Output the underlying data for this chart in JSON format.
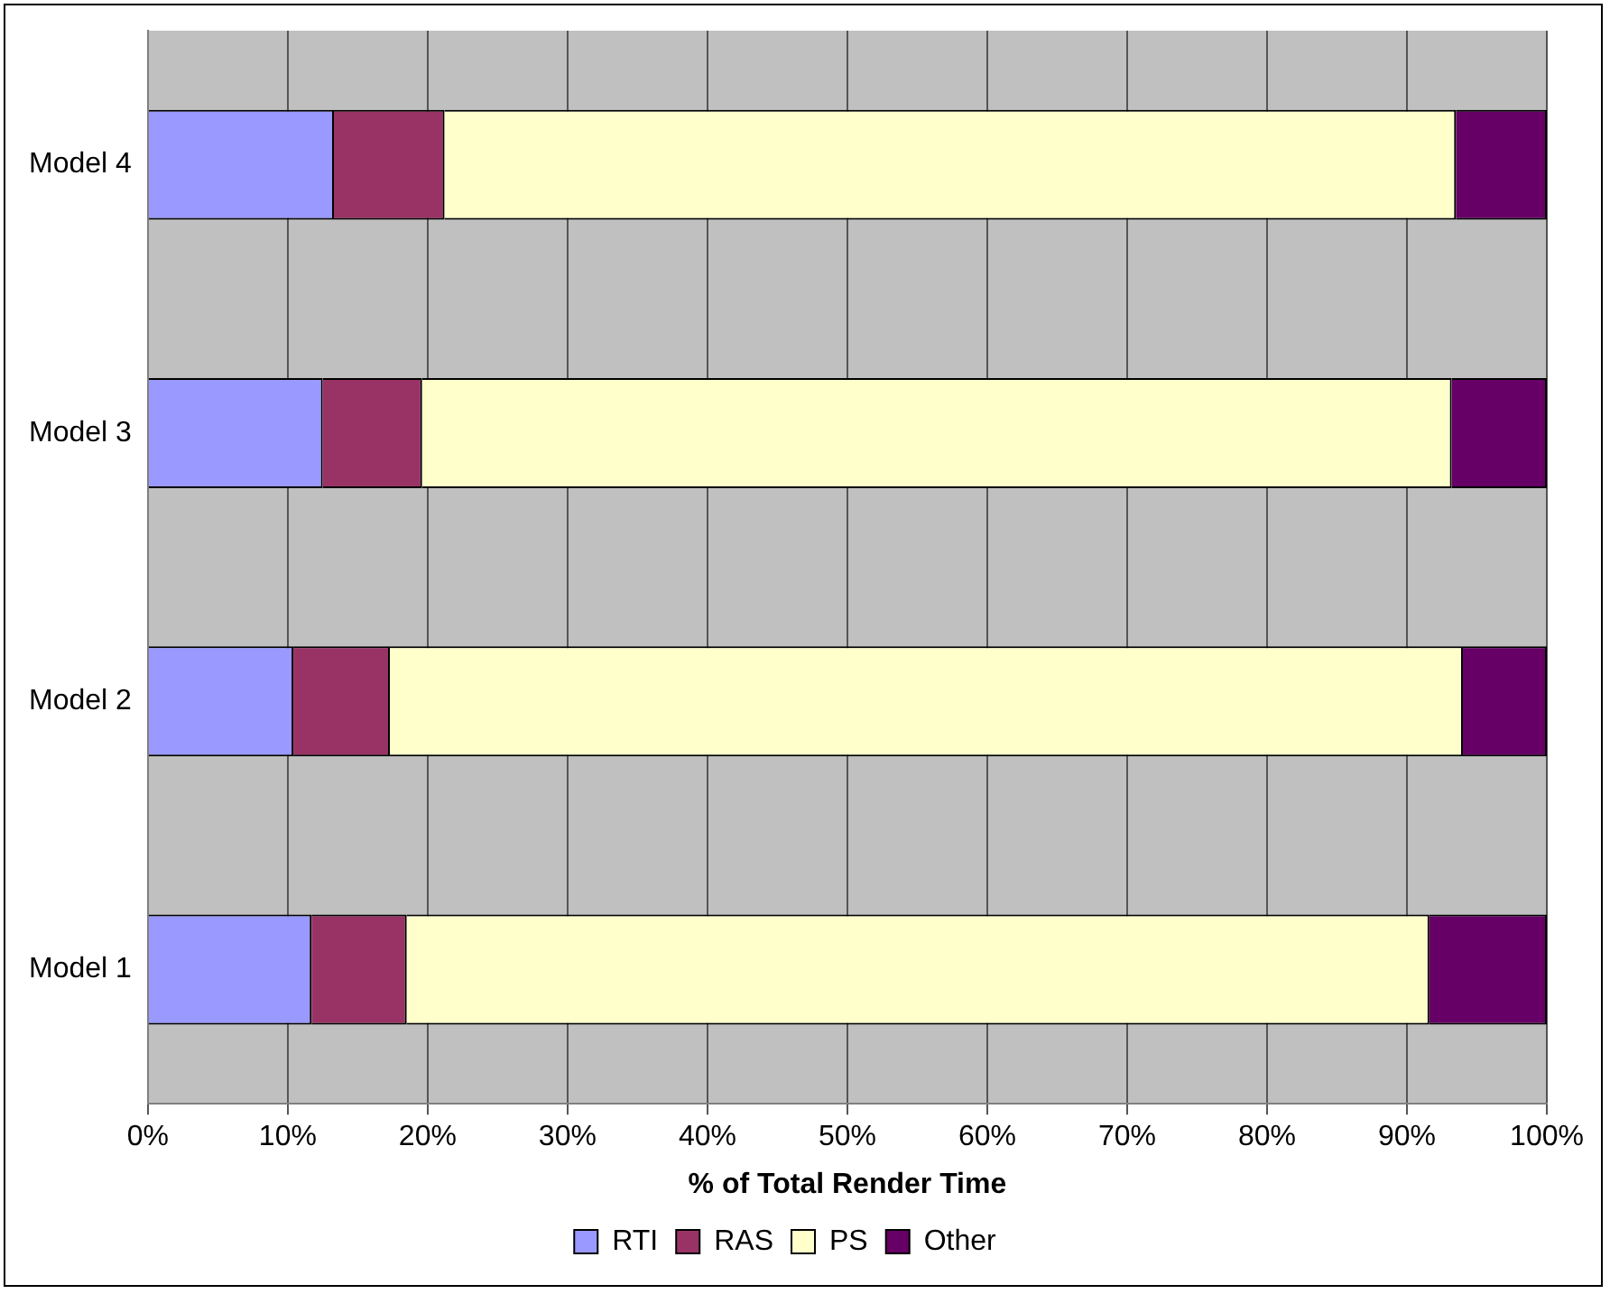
{
  "chart_data": {
    "type": "bar",
    "orientation": "horizontal",
    "stacked": true,
    "xlabel": "% of Total Render Time",
    "categories": [
      "Model 4",
      "Model 3",
      "Model 2",
      "Model 1"
    ],
    "series": [
      {
        "name": "RTI",
        "color": "#9999ff",
        "values": [
          13.3,
          12.5,
          10.4,
          11.7
        ]
      },
      {
        "name": "RAS",
        "color": "#993366",
        "values": [
          7.9,
          7.1,
          6.9,
          6.8
        ]
      },
      {
        "name": "PS",
        "color": "#ffffcc",
        "values": [
          72.3,
          73.6,
          76.7,
          73.1
        ]
      },
      {
        "name": "Other",
        "color": "#660066",
        "values": [
          6.5,
          6.8,
          6.0,
          8.4
        ]
      }
    ],
    "xlim": [
      0,
      100
    ],
    "xticks": [
      {
        "value": 0,
        "label": "0%"
      },
      {
        "value": 10,
        "label": "10%"
      },
      {
        "value": 20,
        "label": "20%"
      },
      {
        "value": 30,
        "label": "30%"
      },
      {
        "value": 40,
        "label": "40%"
      },
      {
        "value": 50,
        "label": "50%"
      },
      {
        "value": 60,
        "label": "60%"
      },
      {
        "value": 70,
        "label": "70%"
      },
      {
        "value": 80,
        "label": "80%"
      },
      {
        "value": 90,
        "label": "90%"
      },
      {
        "value": 100,
        "label": "100%"
      }
    ],
    "grid": "x",
    "legend": "bottom"
  }
}
